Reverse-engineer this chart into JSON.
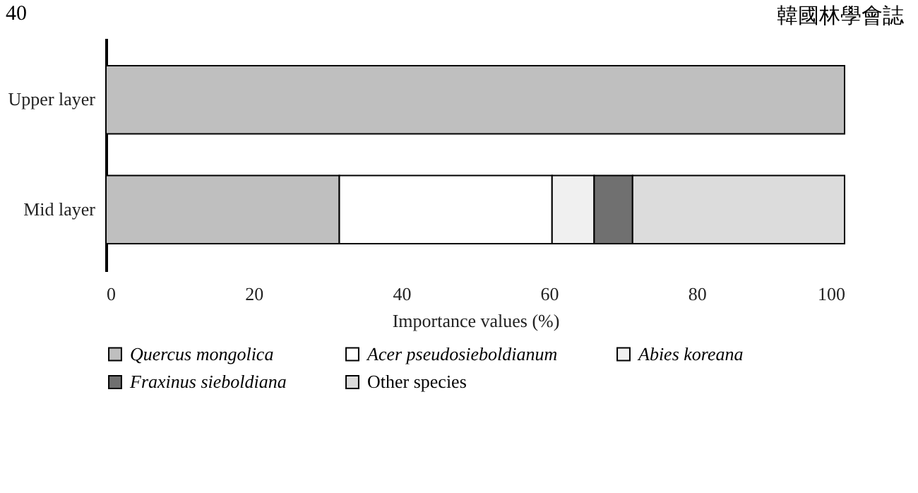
{
  "chart_data": {
    "type": "bar",
    "orientation": "horizontal",
    "stacked": true,
    "xlabel": "Importance values (%)",
    "categories": [
      "Upper layer",
      "Mid layer"
    ],
    "series": [
      {
        "name": "Quercus mongolica",
        "color": "#bfbfbf",
        "values": [
          100,
          31.6
        ]
      },
      {
        "name": "Acer pseudosieboldianum",
        "color": "#ffffff",
        "values": [
          null,
          28.8
        ]
      },
      {
        "name": "Abies koreana",
        "color": "#f0f0f0",
        "values": [
          null,
          5.7
        ]
      },
      {
        "name": "Fraxinus sieboldiana",
        "color": "#707070",
        "values": [
          null,
          5.2
        ]
      },
      {
        "name": "Other species",
        "color": "#dcdcdc",
        "values": [
          null,
          28.7
        ]
      }
    ],
    "xlim": [
      0,
      100
    ],
    "xticks": [
      0,
      20,
      40,
      60,
      80,
      100
    ],
    "grid": false,
    "legend": "bottom",
    "annotations": [
      "40",
      "韓國林學會誌"
    ]
  }
}
